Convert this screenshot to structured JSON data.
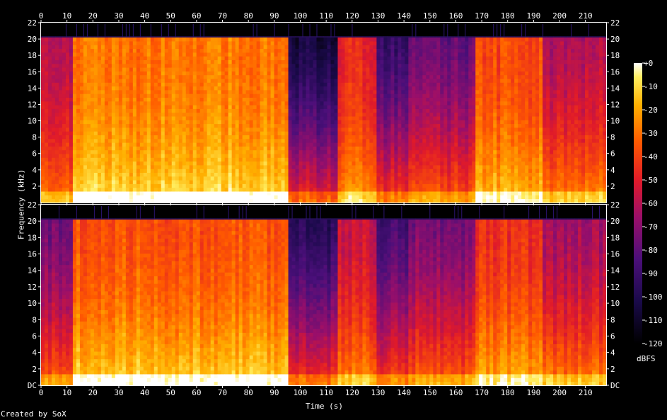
{
  "chart_data": [
    {
      "type": "heatmap",
      "channel": "upper",
      "xlabel": "Time (s)",
      "ylabel": "Frequency (kHz)",
      "x_ticks": [
        0,
        10,
        20,
        30,
        40,
        50,
        60,
        70,
        80,
        90,
        100,
        110,
        120,
        130,
        140,
        150,
        160,
        170,
        180,
        190,
        200,
        210
      ],
      "y_ticks": [
        "2",
        "4",
        "6",
        "8",
        "10",
        "12",
        "14",
        "16",
        "18",
        "20",
        "22"
      ],
      "xlim": [
        0,
        218
      ],
      "ylim_khz": [
        0,
        22
      ],
      "segments": [
        {
          "t": [
            0,
            12
          ],
          "level": 0.55,
          "hf": 0.45
        },
        {
          "t": [
            12,
            96
          ],
          "level": 0.72,
          "hf": 0.55
        },
        {
          "t": [
            96,
            114
          ],
          "level": 0.4,
          "hf": 0.18
        },
        {
          "t": [
            114,
            129
          ],
          "level": 0.6,
          "hf": 0.5
        },
        {
          "t": [
            129,
            142
          ],
          "level": 0.45,
          "hf": 0.25
        },
        {
          "t": [
            142,
            168
          ],
          "level": 0.5,
          "hf": 0.32
        },
        {
          "t": [
            168,
            194
          ],
          "level": 0.66,
          "hf": 0.52
        },
        {
          "t": [
            194,
            218
          ],
          "level": 0.58,
          "hf": 0.4
        }
      ]
    },
    {
      "type": "heatmap",
      "channel": "lower",
      "xlabel": "Time (s)",
      "ylabel": "Frequency (kHz)",
      "x_ticks": [
        0,
        10,
        20,
        30,
        40,
        50,
        60,
        70,
        80,
        90,
        100,
        110,
        120,
        130,
        140,
        150,
        160,
        170,
        180,
        190,
        200,
        210
      ],
      "y_ticks": [
        "DC",
        "2",
        "4",
        "6",
        "8",
        "10",
        "12",
        "14",
        "16",
        "18",
        "20",
        "22"
      ],
      "xlim": [
        0,
        218
      ],
      "ylim_khz": [
        0,
        22
      ],
      "segments": [
        {
          "t": [
            0,
            12
          ],
          "level": 0.5,
          "hf": 0.35
        },
        {
          "t": [
            12,
            96
          ],
          "level": 0.7,
          "hf": 0.5
        },
        {
          "t": [
            96,
            114
          ],
          "level": 0.44,
          "hf": 0.22
        },
        {
          "t": [
            114,
            129
          ],
          "level": 0.58,
          "hf": 0.45
        },
        {
          "t": [
            129,
            142
          ],
          "level": 0.46,
          "hf": 0.28
        },
        {
          "t": [
            142,
            168
          ],
          "level": 0.52,
          "hf": 0.34
        },
        {
          "t": [
            168,
            194
          ],
          "level": 0.64,
          "hf": 0.48
        },
        {
          "t": [
            194,
            218
          ],
          "level": 0.56,
          "hf": 0.38
        }
      ]
    }
  ],
  "colorbar": {
    "unit": "dBFS",
    "ticks": [
      "+0",
      "-10",
      "-20",
      "-30",
      "-40",
      "-50",
      "-60",
      "-70",
      "-80",
      "-90",
      "-100",
      "-110",
      "-120"
    ],
    "range_dbfs": [
      -120,
      0
    ]
  },
  "footer": "Created by SoX",
  "colors": {
    "bg": "#000000",
    "axis": "#ffffff"
  }
}
